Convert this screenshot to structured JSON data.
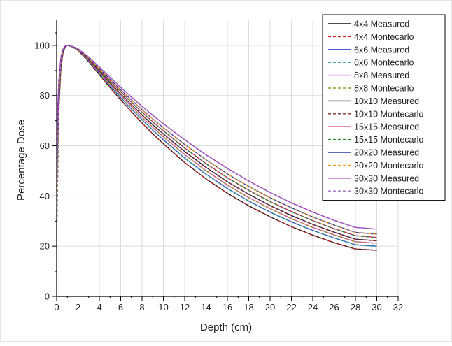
{
  "chart_data": {
    "type": "line",
    "title": "",
    "xlabel": "Depth (cm)",
    "ylabel": "Percentage Dose",
    "xlim": [
      0,
      32
    ],
    "ylim": [
      0,
      110
    ],
    "xticks": [
      0,
      2,
      4,
      6,
      8,
      10,
      12,
      14,
      16,
      18,
      20,
      22,
      24,
      26,
      28,
      30,
      32
    ],
    "yticks": [
      0,
      20,
      40,
      60,
      80,
      100
    ],
    "grid": true,
    "legend_position": "top-right",
    "x": [
      0,
      0.2,
      0.4,
      0.6,
      0.8,
      1.0,
      1.2,
      1.5,
      2,
      3,
      4,
      5,
      6,
      7,
      8,
      9,
      10,
      12,
      14,
      16,
      18,
      20,
      22,
      24,
      26,
      28,
      30
    ],
    "series": [
      {
        "name": "4x4 Measured",
        "color": "#111111",
        "dash": "solid",
        "values": [
          44,
          75,
          91,
          97,
          99.3,
          100,
          99.8,
          99.3,
          98,
          93.5,
          88.3,
          83.2,
          78.3,
          73.6,
          69.1,
          64.8,
          60.8,
          53.3,
          46.8,
          41.1,
          36.1,
          31.7,
          27.8,
          24.4,
          21.4,
          18.9,
          18.4
        ]
      },
      {
        "name": "4x4 Montecarlo",
        "color": "#d62728",
        "dash": "dashed",
        "values": [
          22,
          72,
          90,
          97,
          99.3,
          100,
          99.8,
          99.3,
          98,
          93.5,
          88.2,
          83.1,
          78.2,
          73.5,
          69.0,
          64.7,
          60.7,
          53.2,
          46.7,
          41.0,
          36.0,
          31.6,
          27.7,
          24.3,
          21.3,
          18.8,
          18.3
        ]
      },
      {
        "name": "6x6 Measured",
        "color": "#3344cc",
        "dash": "solid",
        "values": [
          48,
          77,
          92,
          97.5,
          99.4,
          100,
          99.8,
          99.3,
          98.1,
          93.8,
          88.8,
          83.9,
          79.2,
          74.7,
          70.4,
          66.3,
          62.4,
          55.1,
          48.7,
          43.0,
          38.0,
          33.6,
          29.7,
          26.3,
          23.3,
          20.6,
          20.0
        ]
      },
      {
        "name": "6x6 Montecarlo",
        "color": "#2e9d8f",
        "dash": "dashed",
        "values": [
          24,
          74,
          91,
          97.5,
          99.4,
          100,
          99.8,
          99.3,
          98.1,
          93.8,
          88.7,
          83.8,
          79.1,
          74.6,
          70.3,
          66.2,
          62.3,
          55.0,
          48.6,
          42.9,
          37.9,
          33.5,
          29.6,
          26.2,
          23.2,
          20.5,
          19.9
        ]
      },
      {
        "name": "8x8 Measured",
        "color": "#d63fb5",
        "dash": "solid",
        "values": [
          52,
          79,
          93,
          97.8,
          99.5,
          100,
          99.8,
          99.4,
          98.2,
          94.1,
          89.3,
          84.6,
          80.0,
          75.6,
          71.4,
          67.4,
          63.6,
          56.5,
          50.1,
          44.4,
          39.4,
          35.0,
          31.0,
          27.5,
          24.5,
          21.8,
          21.2
        ]
      },
      {
        "name": "8x8 Montecarlo",
        "color": "#9a9a2a",
        "dash": "dashed",
        "values": [
          26,
          76,
          92,
          97.8,
          99.5,
          100,
          99.8,
          99.4,
          98.2,
          94.1,
          89.2,
          84.5,
          79.9,
          75.5,
          71.3,
          67.3,
          63.5,
          56.4,
          50.0,
          44.3,
          39.3,
          34.9,
          30.9,
          27.4,
          24.4,
          21.7,
          21.1
        ]
      },
      {
        "name": "10x10 Measured",
        "color": "#1a1a4a",
        "dash": "solid",
        "values": [
          55,
          80,
          93.5,
          98,
          99.5,
          100,
          99.8,
          99.4,
          98.3,
          94.4,
          89.8,
          85.2,
          80.7,
          76.4,
          72.3,
          68.4,
          64.7,
          57.7,
          51.4,
          45.7,
          40.7,
          36.2,
          32.2,
          28.7,
          25.6,
          22.8,
          22.2
        ]
      },
      {
        "name": "10x10 Montecarlo",
        "color": "#8b2b2b",
        "dash": "dashed",
        "values": [
          28,
          77,
          92.5,
          98,
          99.5,
          100,
          99.8,
          99.4,
          98.3,
          94.4,
          89.7,
          85.1,
          80.6,
          76.3,
          72.2,
          68.3,
          64.6,
          57.6,
          51.3,
          45.6,
          40.6,
          36.1,
          32.1,
          28.6,
          25.5,
          22.7,
          22.1
        ]
      },
      {
        "name": "15x15 Measured",
        "color": "#d81b60",
        "dash": "solid",
        "values": [
          58,
          82,
          94,
          98.2,
          99.6,
          100,
          99.8,
          99.5,
          98.4,
          94.7,
          90.3,
          85.9,
          81.6,
          77.4,
          73.4,
          69.6,
          66.0,
          59.1,
          52.9,
          47.3,
          42.3,
          37.8,
          33.8,
          30.2,
          27.0,
          24.2,
          23.5
        ]
      },
      {
        "name": "15x15 Montecarlo",
        "color": "#2e8b3a",
        "dash": "dashed",
        "values": [
          30,
          79,
          93,
          98.2,
          99.6,
          100,
          99.8,
          99.5,
          98.4,
          94.7,
          90.2,
          85.8,
          81.5,
          77.3,
          73.3,
          69.5,
          65.9,
          59.0,
          52.8,
          47.2,
          42.2,
          37.7,
          33.7,
          30.1,
          26.9,
          24.1,
          23.4
        ]
      },
      {
        "name": "20x20 Measured",
        "color": "#2e3a9e",
        "dash": "solid",
        "values": [
          62,
          84,
          95,
          98.5,
          99.7,
          100,
          99.9,
          99.5,
          98.5,
          95.0,
          90.8,
          86.5,
          82.3,
          78.3,
          74.4,
          70.7,
          67.2,
          60.5,
          54.4,
          48.8,
          43.8,
          39.3,
          35.3,
          31.6,
          28.4,
          25.5,
          24.8
        ]
      },
      {
        "name": "20x20 Montecarlo",
        "color": "#f0a030",
        "dash": "dashed",
        "values": [
          32,
          81,
          94,
          98.5,
          99.7,
          100,
          99.9,
          99.5,
          98.5,
          95.0,
          90.7,
          86.4,
          82.2,
          78.2,
          74.3,
          70.6,
          67.1,
          60.4,
          54.3,
          48.7,
          43.7,
          39.2,
          35.2,
          31.5,
          28.3,
          25.4,
          24.7
        ]
      },
      {
        "name": "30x30 Measured",
        "color": "#9b2fae",
        "dash": "solid",
        "values": [
          65,
          86,
          95.5,
          98.7,
          99.8,
          100,
          99.9,
          99.6,
          98.7,
          95.4,
          91.4,
          87.3,
          83.3,
          79.4,
          75.7,
          72.2,
          68.8,
          62.4,
          56.4,
          51.0,
          46.0,
          41.4,
          37.3,
          33.6,
          30.3,
          27.5,
          26.8
        ]
      },
      {
        "name": "30x30 Montecarlo",
        "color": "#a070c8",
        "dash": "dashed",
        "values": [
          34,
          83,
          95,
          98.7,
          99.8,
          100,
          99.9,
          99.6,
          98.7,
          95.4,
          91.3,
          87.2,
          83.2,
          79.3,
          75.6,
          72.1,
          68.7,
          62.3,
          56.3,
          50.9,
          45.9,
          41.3,
          37.2,
          33.5,
          30.2,
          27.4,
          26.7
        ]
      }
    ]
  }
}
